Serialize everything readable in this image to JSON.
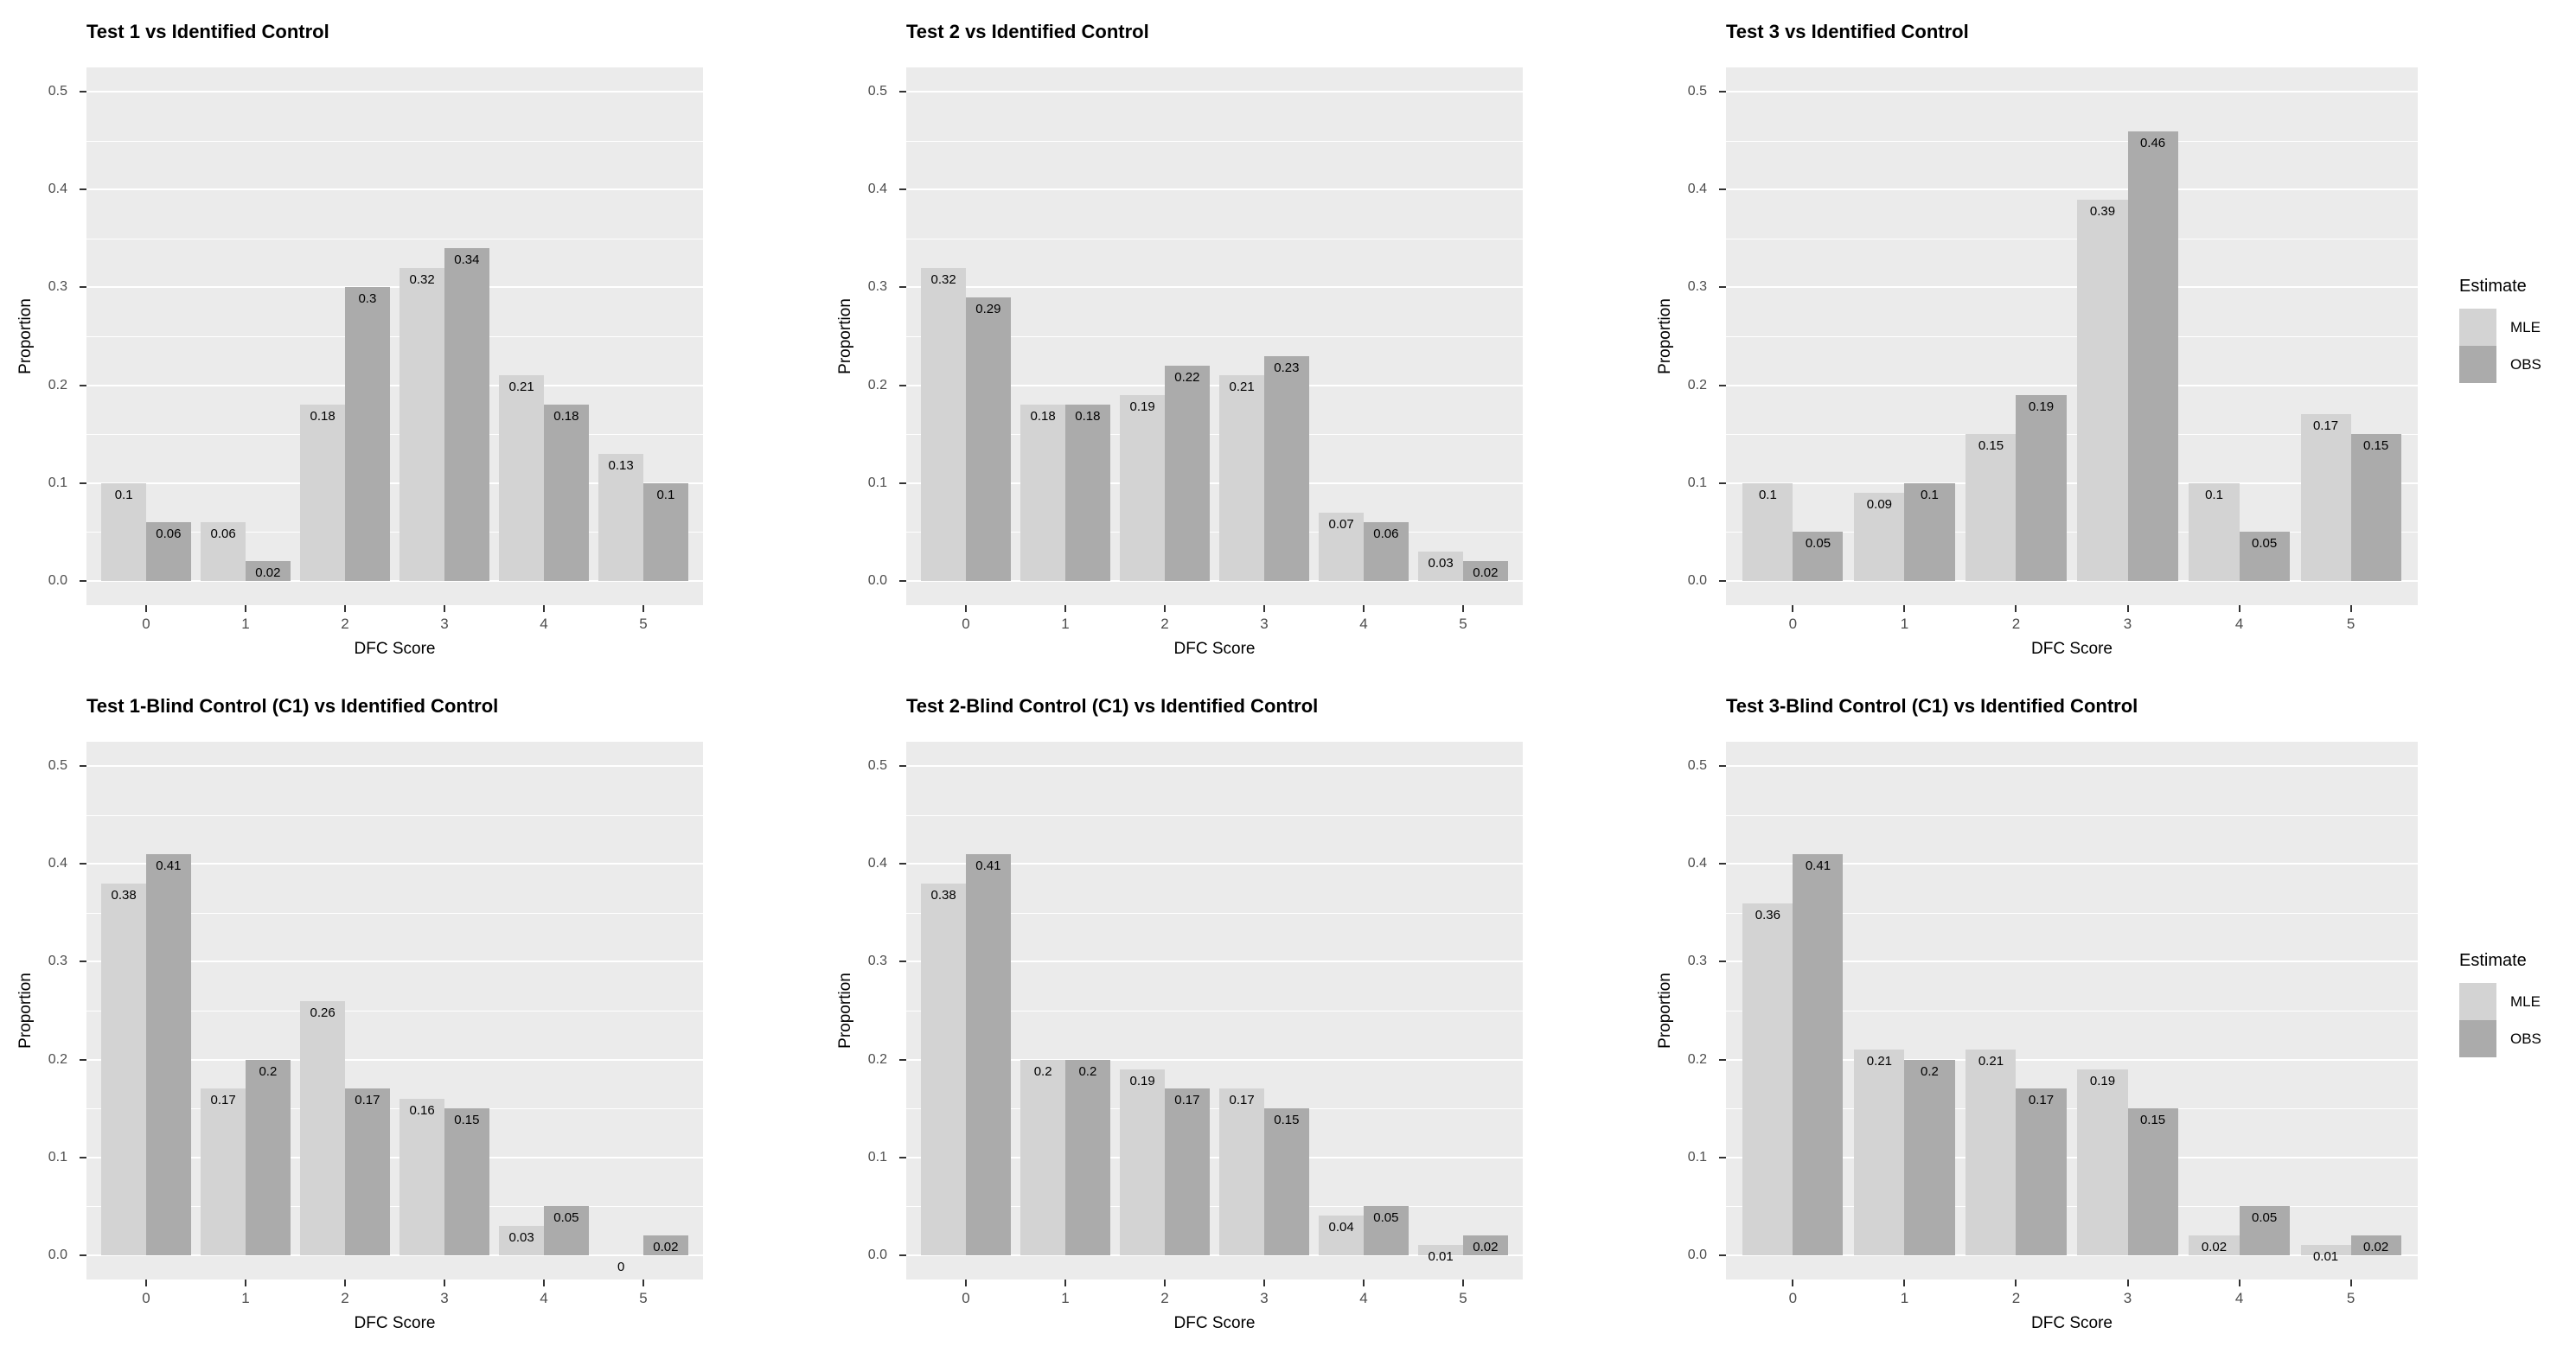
{
  "figure": {
    "xlabel": "DFC Score",
    "ylabel": "Proportion",
    "x_ticks": [
      "0",
      "1",
      "2",
      "3",
      "4",
      "5"
    ],
    "y_ticks": [
      {
        "label": "0.0",
        "value": 0.0
      },
      {
        "label": "0.1",
        "value": 0.1
      },
      {
        "label": "0.2",
        "value": 0.2
      },
      {
        "label": "0.3",
        "value": 0.3
      },
      {
        "label": "0.4",
        "value": 0.4
      },
      {
        "label": "0.5",
        "value": 0.5
      }
    ],
    "y_minor": [
      0.05,
      0.15,
      0.25,
      0.35,
      0.45
    ],
    "legend": {
      "title": "Estimate",
      "entries": [
        {
          "label": "MLE",
          "color": "#D3D3D3"
        },
        {
          "label": "OBS",
          "color": "#ABABAB"
        }
      ]
    },
    "colors": {
      "panel_background": "#EBEBEB",
      "gridline": "#FFFFFF",
      "mle_fill": "#D3D3D3",
      "obs_fill": "#ABABAB",
      "tick_text": "#4D4D4D",
      "title_text": "#000000"
    }
  },
  "chart_data": [
    {
      "type": "bar",
      "title": "Test 1 vs Identified Control",
      "xlabel": "DFC Score",
      "ylabel": "Proportion",
      "categories": [
        "0",
        "1",
        "2",
        "3",
        "4",
        "5"
      ],
      "series": [
        {
          "name": "MLE",
          "values": [
            0.1,
            0.06,
            0.18,
            0.32,
            0.21,
            0.13
          ]
        },
        {
          "name": "OBS",
          "values": [
            0.06,
            0.02,
            0.3,
            0.34,
            0.18,
            0.1
          ]
        }
      ],
      "ylim": [
        -0.025,
        0.525
      ],
      "grid": true,
      "legend_position": "right"
    },
    {
      "type": "bar",
      "title": "Test 2 vs Identified Control",
      "xlabel": "DFC Score",
      "ylabel": "Proportion",
      "categories": [
        "0",
        "1",
        "2",
        "3",
        "4",
        "5"
      ],
      "series": [
        {
          "name": "MLE",
          "values": [
            0.32,
            0.18,
            0.19,
            0.21,
            0.07,
            0.03
          ]
        },
        {
          "name": "OBS",
          "values": [
            0.29,
            0.18,
            0.22,
            0.23,
            0.06,
            0.02
          ]
        }
      ],
      "ylim": [
        -0.025,
        0.525
      ],
      "grid": true,
      "legend_position": "right"
    },
    {
      "type": "bar",
      "title": "Test 3 vs Identified Control",
      "xlabel": "DFC Score",
      "ylabel": "Proportion",
      "categories": [
        "0",
        "1",
        "2",
        "3",
        "4",
        "5"
      ],
      "series": [
        {
          "name": "MLE",
          "values": [
            0.1,
            0.09,
            0.15,
            0.39,
            0.1,
            0.17
          ]
        },
        {
          "name": "OBS",
          "values": [
            0.05,
            0.1,
            0.19,
            0.46,
            0.05,
            0.15
          ]
        }
      ],
      "ylim": [
        -0.025,
        0.525
      ],
      "grid": true,
      "legend_position": "right"
    },
    {
      "type": "bar",
      "title": "Test 1-Blind Control (C1) vs Identified Control",
      "xlabel": "DFC Score",
      "ylabel": "Proportion",
      "categories": [
        "0",
        "1",
        "2",
        "3",
        "4",
        "5"
      ],
      "series": [
        {
          "name": "MLE",
          "values": [
            0.38,
            0.17,
            0.26,
            0.16,
            0.03,
            0
          ]
        },
        {
          "name": "OBS",
          "values": [
            0.41,
            0.2,
            0.17,
            0.15,
            0.05,
            0.02
          ]
        }
      ],
      "ylim": [
        -0.025,
        0.525
      ],
      "grid": true,
      "legend_position": "right"
    },
    {
      "type": "bar",
      "title": "Test 2-Blind Control (C1) vs Identified Control",
      "xlabel": "DFC Score",
      "ylabel": "Proportion",
      "categories": [
        "0",
        "1",
        "2",
        "3",
        "4",
        "5"
      ],
      "series": [
        {
          "name": "MLE",
          "values": [
            0.38,
            0.2,
            0.19,
            0.17,
            0.04,
            0.01
          ]
        },
        {
          "name": "OBS",
          "values": [
            0.41,
            0.2,
            0.17,
            0.15,
            0.05,
            0.02
          ]
        }
      ],
      "ylim": [
        -0.025,
        0.525
      ],
      "grid": true,
      "legend_position": "right"
    },
    {
      "type": "bar",
      "title": "Test 3-Blind Control (C1) vs Identified Control",
      "xlabel": "DFC Score",
      "ylabel": "Proportion",
      "categories": [
        "0",
        "1",
        "2",
        "3",
        "4",
        "5"
      ],
      "series": [
        {
          "name": "MLE",
          "values": [
            0.36,
            0.21,
            0.21,
            0.19,
            0.02,
            0.01
          ]
        },
        {
          "name": "OBS",
          "values": [
            0.41,
            0.2,
            0.17,
            0.15,
            0.05,
            0.02
          ]
        }
      ],
      "ylim": [
        -0.025,
        0.525
      ],
      "grid": true,
      "legend_position": "right"
    }
  ]
}
